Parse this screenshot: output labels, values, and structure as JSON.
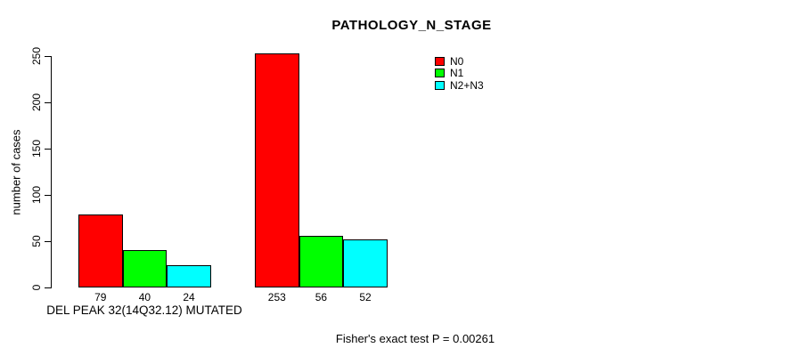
{
  "page": {
    "background": "#ffffff"
  },
  "chart_data": {
    "type": "bar",
    "title": "PATHOLOGY_N_STAGE",
    "ylabel": "number of cases",
    "xlabel": "DEL PEAK 32(14Q32.12) MUTATED",
    "footnote": "Fisher's exact test P = 0.00261",
    "ylim": [
      0,
      250
    ],
    "yticks": [
      0,
      50,
      100,
      150,
      200,
      250
    ],
    "categories": [
      "DEL PEAK 32(14Q32.12) MUTATED",
      ""
    ],
    "series": [
      {
        "name": "N0",
        "color": "#ff0000",
        "values": [
          79,
          253
        ]
      },
      {
        "name": "N1",
        "color": "#00ff00",
        "values": [
          40,
          56
        ]
      },
      {
        "name": "N2+N3",
        "color": "#00ffff",
        "values": [
          24,
          52
        ]
      }
    ],
    "bar_value_labels": [
      [
        79,
        40,
        24
      ],
      [
        253,
        56,
        52
      ]
    ],
    "legend_position": "top-right",
    "grid": false,
    "axis_color": "#000000",
    "bar_border_color": "#000000"
  }
}
